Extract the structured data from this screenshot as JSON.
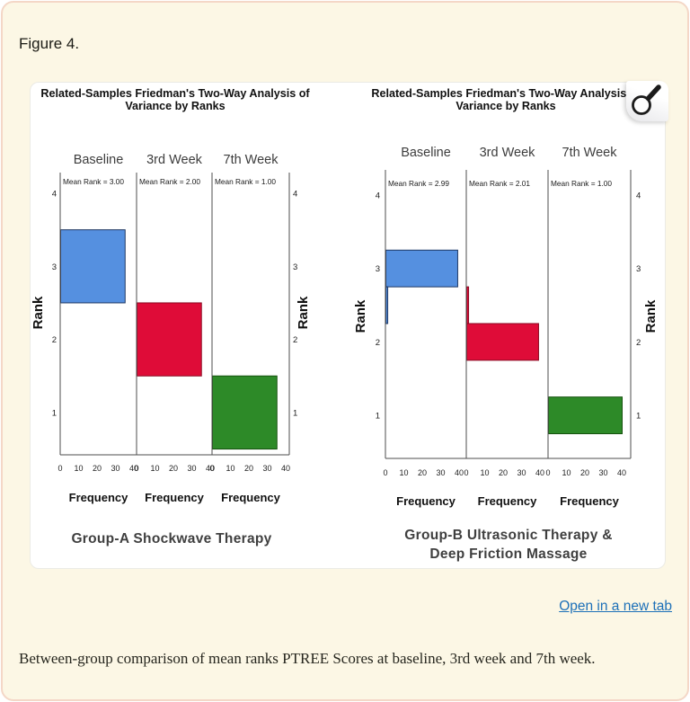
{
  "page": {
    "figure_label": "Figure 4.",
    "caption": "Between-group comparison of mean ranks PTREE Scores at baseline, 3rd week and 7th week.",
    "open_link_label": "Open in a new tab",
    "colors": {
      "page_bg": "#fcf7e5",
      "page_border": "#f4d7c7",
      "figure_bg": "#ffffff",
      "link": "#1d70b8",
      "bar_blue": "#5590e0",
      "bar_red": "#df0c38",
      "bar_green": "#2d8a28"
    },
    "icons": [
      "magnifier-icon"
    ]
  },
  "chart_data": [
    {
      "type": "bar",
      "orientation": "horizontal-histogram",
      "title": "Related-Samples Friedman's Two-Way Analysis of Variance by Ranks",
      "title_lines": [
        "Related-Samples Friedman's Two-Way Analysis of",
        "Variance by Ranks"
      ],
      "group_label_lines": [
        "Group-A Shockwave Therapy"
      ],
      "xlabel": "Frequency",
      "ylabel": "Rank",
      "x_ticks": [
        0,
        10,
        20,
        30,
        40
      ],
      "y_ticks": [
        4,
        3,
        2,
        1
      ],
      "xlim": [
        0,
        40
      ],
      "ylim_rank": [
        0.4,
        4.3
      ],
      "grid": false,
      "panels": [
        {
          "label": "Baseline",
          "mean_rank_label": "Mean Rank = 3.00",
          "mean_rank": 3.0,
          "color": "#5590e0",
          "border": "#1f3864",
          "bars": [
            {
              "rank_from": 2.5,
              "rank_to": 3.5,
              "frequency": 35
            }
          ]
        },
        {
          "label": "3rd Week",
          "mean_rank_label": "Mean Rank = 2.00",
          "mean_rank": 2.0,
          "color": "#df0c38",
          "border": "#8a0a22",
          "bars": [
            {
              "rank_from": 1.5,
              "rank_to": 2.5,
              "frequency": 35
            }
          ]
        },
        {
          "label": "7th Week",
          "mean_rank_label": "Mean Rank = 1.00",
          "mean_rank": 1.0,
          "color": "#2d8a28",
          "border": "#16520f",
          "bars": [
            {
              "rank_from": 0.5,
              "rank_to": 1.5,
              "frequency": 35
            }
          ]
        }
      ]
    },
    {
      "type": "bar",
      "orientation": "horizontal-histogram",
      "title": "Related-Samples Friedman's Two-Way Analysis of Variance by Ranks",
      "title_lines": [
        "Related-Samples Friedman's Two-Way Analysis of",
        "Variance by Ranks"
      ],
      "group_label_lines": [
        "Group-B Ultrasonic Therapy &",
        "Deep Friction Massage"
      ],
      "xlabel": "Frequency",
      "ylabel": "Rank",
      "x_ticks": [
        0,
        10,
        20,
        30,
        40
      ],
      "y_ticks": [
        4,
        3,
        2,
        1
      ],
      "xlim": [
        0,
        40
      ],
      "ylim_rank": [
        0.4,
        4.3
      ],
      "grid": false,
      "panels": [
        {
          "label": "Baseline",
          "mean_rank_label": "Mean Rank = 2.99",
          "mean_rank": 2.99,
          "color": "#5590e0",
          "border": "#1f3864",
          "bars": [
            {
              "rank_from": 2.75,
              "rank_to": 3.25,
              "frequency": 39
            },
            {
              "rank_from": 2.25,
              "rank_to": 2.75,
              "frequency": 1
            }
          ]
        },
        {
          "label": "3rd Week",
          "mean_rank_label": "Mean Rank = 2.01",
          "mean_rank": 2.01,
          "color": "#df0c38",
          "border": "#8a0a22",
          "bars": [
            {
              "rank_from": 1.75,
              "rank_to": 2.25,
              "frequency": 39
            },
            {
              "rank_from": 2.25,
              "rank_to": 2.75,
              "frequency": 1
            }
          ]
        },
        {
          "label": "7th Week",
          "mean_rank_label": "Mean Rank = 1.00",
          "mean_rank": 1.0,
          "color": "#2d8a28",
          "border": "#16520f",
          "bars": [
            {
              "rank_from": 0.75,
              "rank_to": 1.25,
              "frequency": 40
            }
          ]
        }
      ]
    }
  ]
}
